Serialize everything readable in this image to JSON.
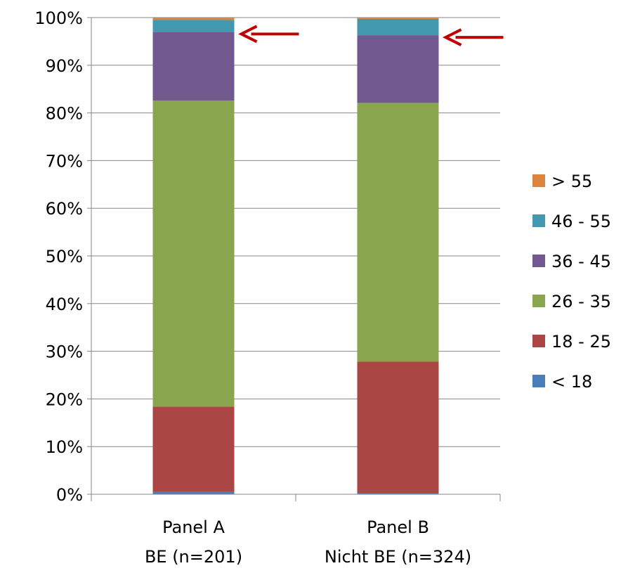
{
  "chart_data": {
    "type": "bar",
    "stacked": true,
    "normalized": true,
    "title": "",
    "xlabel": "",
    "ylabel": "",
    "ylim": [
      0,
      100
    ],
    "y_ticks": [
      "0%",
      "10%",
      "20%",
      "30%",
      "40%",
      "50%",
      "60%",
      "70%",
      "80%",
      "90%",
      "100%"
    ],
    "grid": true,
    "legend_position": "right",
    "categories": [
      [
        "Panel A",
        "BE (n=201)"
      ],
      [
        "Panel B",
        "Nicht BE (n=324)"
      ]
    ],
    "series": [
      {
        "name": "< 18",
        "color": "#4A7EBB",
        "values": [
          0.5,
          0.3
        ]
      },
      {
        "name": "18 - 25",
        "color": "#AA4643",
        "values": [
          17.9,
          27.5
        ]
      },
      {
        "name": "26 - 35",
        "color": "#89A54E",
        "values": [
          64.2,
          54.3
        ]
      },
      {
        "name": "36 - 45",
        "color": "#71588F",
        "values": [
          14.4,
          14.2
        ]
      },
      {
        "name": "46 - 55",
        "color": "#4198AF",
        "values": [
          2.5,
          3.4
        ]
      },
      {
        "name": "> 55",
        "color": "#DB843D",
        "values": [
          0.5,
          0.3
        ]
      }
    ],
    "annotations": [
      {
        "type": "arrow",
        "category_index": 0,
        "value": 97.0,
        "color": "#C00000"
      },
      {
        "type": "arrow",
        "category_index": 1,
        "value": 96.3,
        "color": "#C00000"
      }
    ]
  }
}
